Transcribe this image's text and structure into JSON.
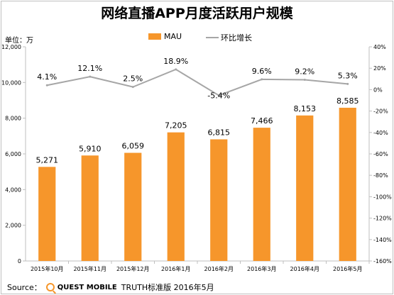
{
  "chart_data": {
    "type": "bar",
    "title": "网络直播APP月度活跃用户规模",
    "unit_label": "单位：万",
    "categories": [
      "2015年10月",
      "2015年11月",
      "2015年12月",
      "2016年1月",
      "2016年2月",
      "2016年3月",
      "2016年4月",
      "2016年5月"
    ],
    "bar_series": {
      "name": "MAU",
      "values": [
        5271,
        5910,
        6059,
        7205,
        6815,
        7466,
        8153,
        8585
      ],
      "labels": [
        "5,271",
        "5,910",
        "6,059",
        "7,205",
        "6,815",
        "7,466",
        "8,153",
        "8,585"
      ]
    },
    "line_series": {
      "name": "环比增长",
      "values": [
        4.1,
        12.1,
        2.5,
        18.9,
        -5.4,
        9.6,
        9.2,
        5.3
      ],
      "labels": [
        "4.1%",
        "12.1%",
        "2.5%",
        "18.9%",
        "-5.4%",
        "9.6%",
        "9.2%",
        "5.3%"
      ]
    },
    "y_left": {
      "min": 0,
      "max": 12000,
      "ticks": [
        "0",
        "2,000",
        "4,000",
        "6,000",
        "8,000",
        "10,000",
        "12,000"
      ]
    },
    "y_right": {
      "min": -160,
      "max": 40,
      "ticks": [
        "-160%",
        "-140%",
        "-120%",
        "-100%",
        "-80%",
        "-60%",
        "-40%",
        "-20%",
        "0%",
        "20%",
        "40%"
      ]
    },
    "grid": false,
    "legend_position": "top-right",
    "colors": {
      "bar": "#f6962b",
      "line": "#a6a6a6",
      "axis": "#bfbfbf"
    }
  },
  "source": {
    "label": "Source：",
    "brand": "QUEST MOBILE",
    "text": "TRUTH标准版 2016年5月"
  }
}
